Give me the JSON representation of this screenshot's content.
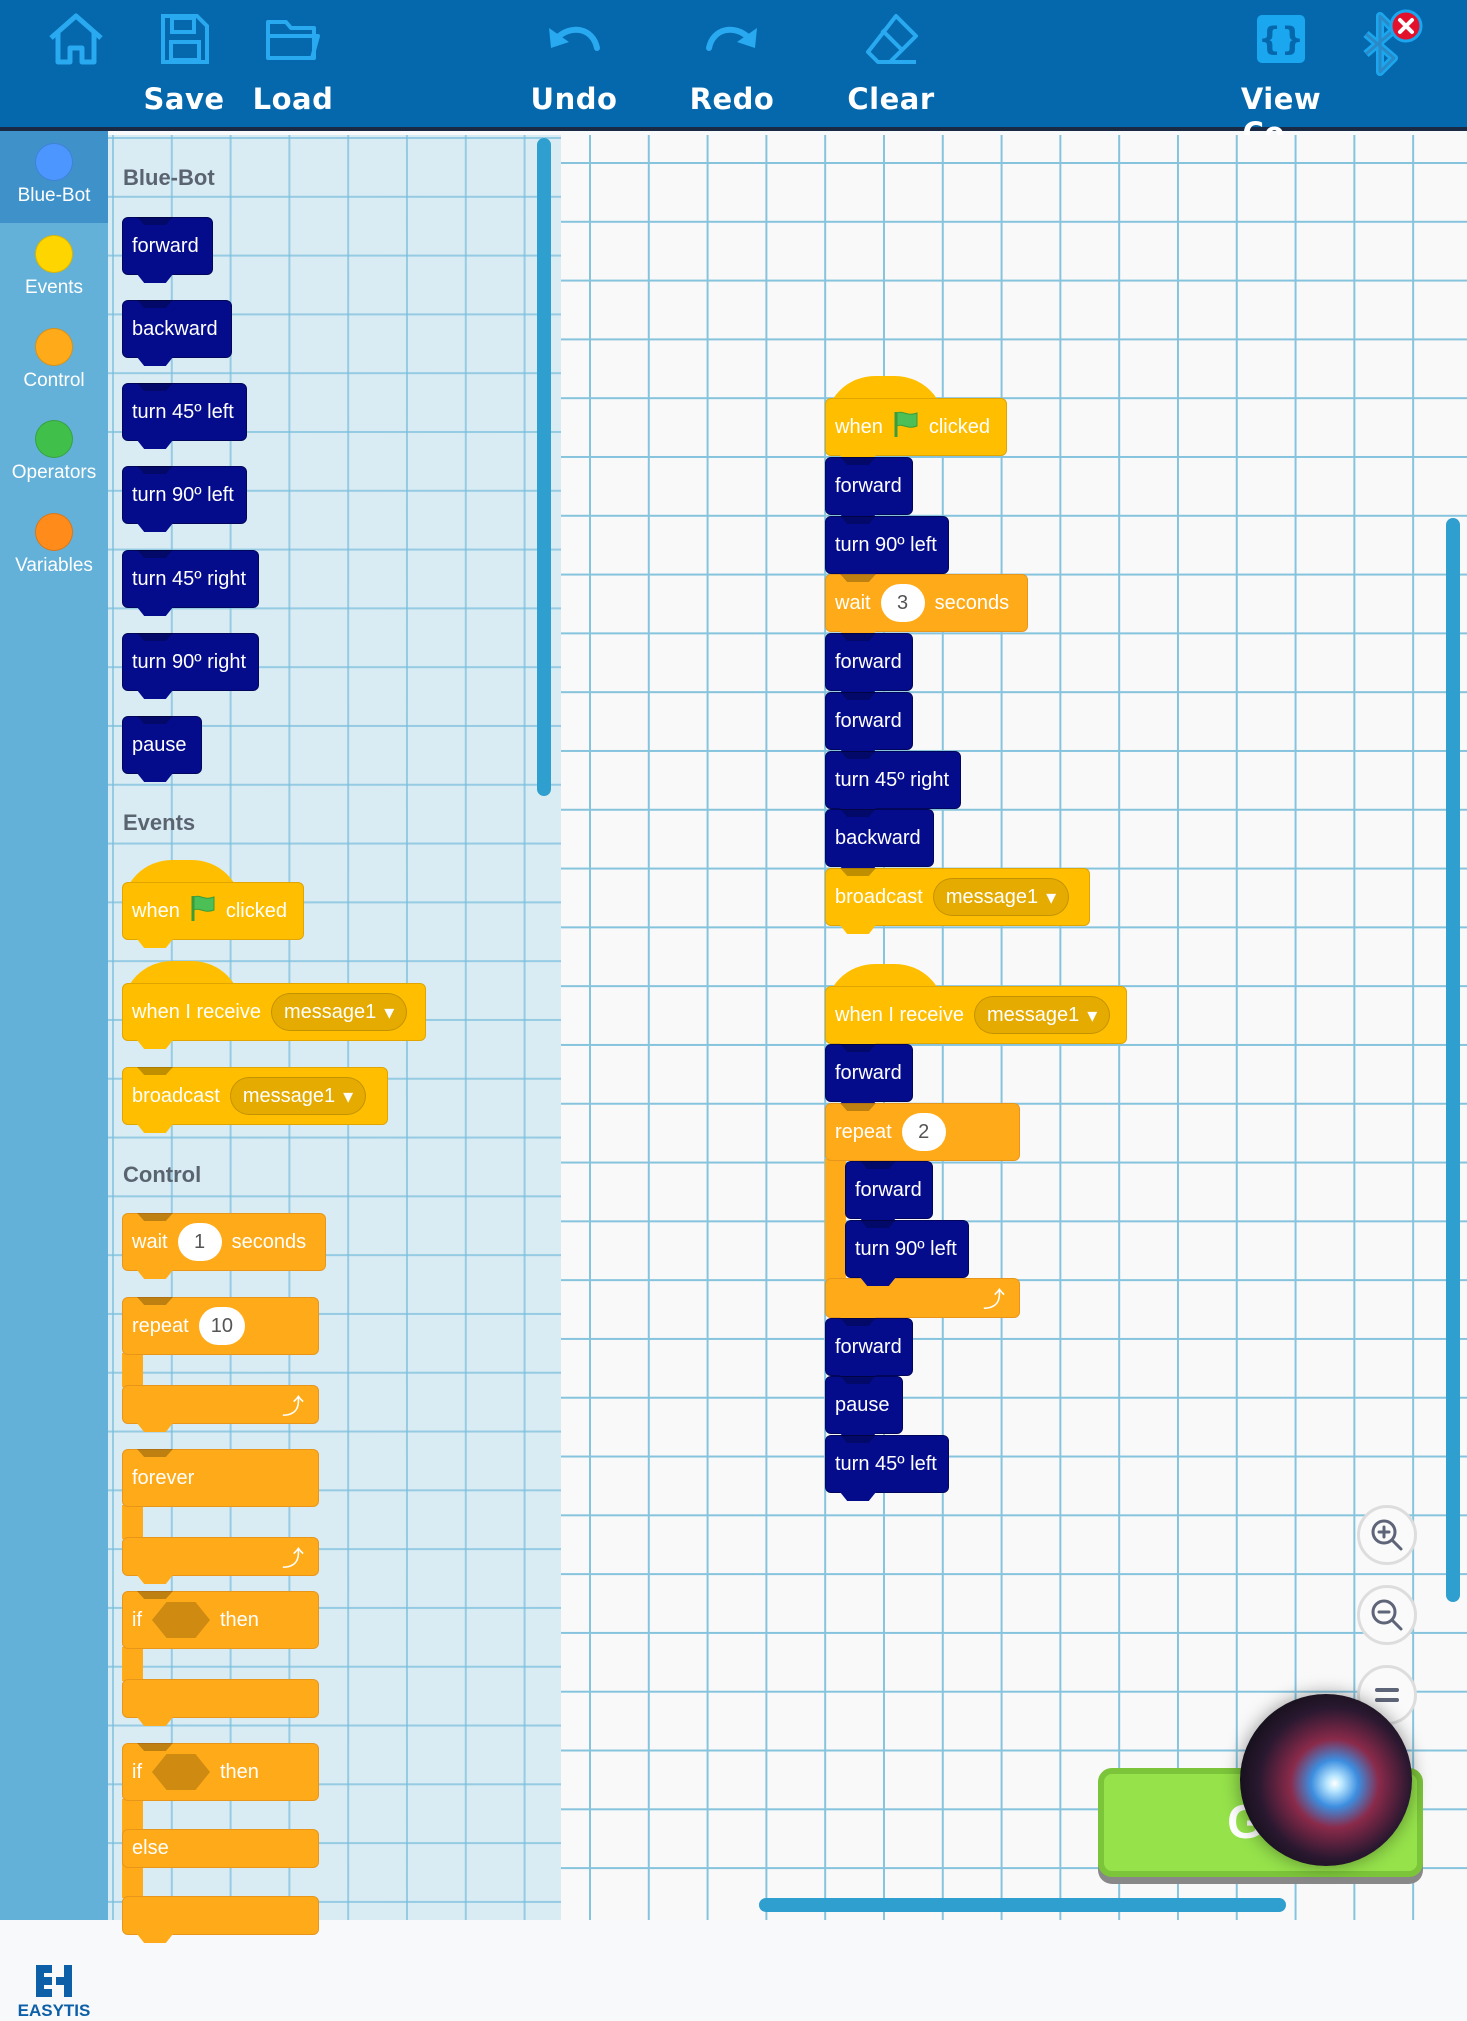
{
  "toolbar": {
    "home_icon": "home-icon",
    "items": [
      {
        "label": "Save",
        "icon": "save-icon"
      },
      {
        "label": "Load",
        "icon": "folder-icon"
      },
      {
        "label": "Undo",
        "icon": "undo-icon"
      },
      {
        "label": "Redo",
        "icon": "redo-icon"
      },
      {
        "label": "Clear",
        "icon": "eraser-icon"
      },
      {
        "label": "View Co...",
        "icon": "code-braces-icon"
      }
    ],
    "bluetooth_icon": "bluetooth-disconnected-icon",
    "icon_color": "#29a9f0",
    "bar_color": "#0568ad"
  },
  "sidebar": {
    "selected": "Blue-Bot",
    "categories": [
      {
        "label": "Blue-Bot",
        "color": "#4c97ff"
      },
      {
        "label": "Events",
        "color": "#ffd500"
      },
      {
        "label": "Control",
        "color": "#ffab19"
      },
      {
        "label": "Operators",
        "color": "#40bf4a"
      },
      {
        "label": "Variables",
        "color": "#ff8c1a"
      }
    ],
    "logo": "EASYTIS"
  },
  "palette": {
    "headings": [
      "Blue-Bot",
      "Events",
      "Control"
    ],
    "blocks": [
      {
        "type": "motion",
        "parts": [
          {
            "t": "text",
            "v": "forward"
          }
        ]
      },
      {
        "type": "motion",
        "parts": [
          {
            "t": "text",
            "v": "backward"
          }
        ]
      },
      {
        "type": "motion",
        "parts": [
          {
            "t": "text",
            "v": "turn 45º left"
          }
        ]
      },
      {
        "type": "motion",
        "parts": [
          {
            "t": "text",
            "v": "turn 90º left"
          }
        ]
      },
      {
        "type": "motion",
        "parts": [
          {
            "t": "text",
            "v": "turn 45º right"
          }
        ]
      },
      {
        "type": "motion",
        "parts": [
          {
            "t": "text",
            "v": "turn 90º right"
          }
        ]
      },
      {
        "type": "motion",
        "parts": [
          {
            "t": "text",
            "v": "pause"
          }
        ]
      },
      {
        "type": "event",
        "shape": "hat",
        "parts": [
          {
            "t": "text",
            "v": "when"
          },
          {
            "t": "flag",
            "v": "green-flag-icon"
          },
          {
            "t": "text",
            "v": "clicked"
          }
        ]
      },
      {
        "type": "event",
        "shape": "hat",
        "parts": [
          {
            "t": "text",
            "v": "when I receive"
          },
          {
            "t": "dropdown",
            "v": "message1"
          }
        ]
      },
      {
        "type": "event",
        "parts": [
          {
            "t": "text",
            "v": "broadcast"
          },
          {
            "t": "dropdown",
            "v": "message1"
          }
        ]
      },
      {
        "type": "control",
        "parts": [
          {
            "t": "text",
            "v": "wait"
          },
          {
            "t": "input",
            "v": "1"
          },
          {
            "t": "text",
            "v": "seconds"
          }
        ]
      },
      {
        "type": "control",
        "shape": "c",
        "parts": [
          {
            "t": "text",
            "v": "repeat"
          },
          {
            "t": "input",
            "v": "10"
          }
        ]
      },
      {
        "type": "control",
        "shape": "c",
        "parts": [
          {
            "t": "text",
            "v": "forever"
          }
        ]
      },
      {
        "type": "control",
        "shape": "c",
        "parts": [
          {
            "t": "text",
            "v": "if"
          },
          {
            "t": "hex",
            "v": ""
          },
          {
            "t": "text",
            "v": "then"
          }
        ]
      },
      {
        "type": "control",
        "shape": "ifelse",
        "parts": [
          {
            "t": "text",
            "v": "if"
          },
          {
            "t": "hex",
            "v": ""
          },
          {
            "t": "text",
            "v": "then"
          }
        ],
        "else_label": "else"
      }
    ]
  },
  "workspace": {
    "blocks": [
      {
        "type": "event",
        "shape": "hat",
        "parts": [
          {
            "t": "text",
            "v": "when"
          },
          {
            "t": "flag",
            "v": "green-flag-icon"
          },
          {
            "t": "text",
            "v": "clicked"
          }
        ]
      },
      {
        "type": "motion",
        "parts": [
          {
            "t": "text",
            "v": "forward"
          }
        ]
      },
      {
        "type": "motion",
        "parts": [
          {
            "t": "text",
            "v": "turn 90º left"
          }
        ]
      },
      {
        "type": "control",
        "parts": [
          {
            "t": "text",
            "v": "wait"
          },
          {
            "t": "input",
            "v": "3"
          },
          {
            "t": "text",
            "v": "seconds"
          }
        ]
      },
      {
        "type": "motion",
        "parts": [
          {
            "t": "text",
            "v": "forward"
          }
        ]
      },
      {
        "type": "motion",
        "parts": [
          {
            "t": "text",
            "v": "forward"
          }
        ]
      },
      {
        "type": "motion",
        "parts": [
          {
            "t": "text",
            "v": "turn 45º right"
          }
        ]
      },
      {
        "type": "motion",
        "parts": [
          {
            "t": "text",
            "v": "backward"
          }
        ]
      },
      {
        "type": "event",
        "parts": [
          {
            "t": "text",
            "v": "broadcast"
          },
          {
            "t": "dropdown",
            "v": "message1"
          }
        ]
      },
      {
        "type": "event",
        "shape": "hat",
        "parts": [
          {
            "t": "text",
            "v": "when I receive"
          },
          {
            "t": "dropdown",
            "v": "message1"
          }
        ]
      },
      {
        "type": "motion",
        "parts": [
          {
            "t": "text",
            "v": "forward"
          }
        ]
      },
      {
        "type": "control",
        "shape": "c",
        "parts": [
          {
            "t": "text",
            "v": "repeat"
          },
          {
            "t": "input",
            "v": "2"
          }
        ]
      },
      {
        "type": "motion",
        "parts": [
          {
            "t": "text",
            "v": "forward"
          }
        ]
      },
      {
        "type": "motion",
        "parts": [
          {
            "t": "text",
            "v": "turn 90º left"
          }
        ]
      },
      {
        "type": "motion",
        "parts": [
          {
            "t": "text",
            "v": "forward"
          }
        ]
      },
      {
        "type": "motion",
        "parts": [
          {
            "t": "text",
            "v": "pause"
          }
        ]
      },
      {
        "type": "motion",
        "parts": [
          {
            "t": "text",
            "v": "turn 45º left"
          }
        ]
      }
    ]
  },
  "zoom_controls": [
    {
      "icon": "zoom-in-icon"
    },
    {
      "icon": "zoom-out-icon"
    },
    {
      "icon": "reset-zoom-icon"
    }
  ],
  "go_button": {
    "label": "Go",
    "color": "#95e24b"
  },
  "siri_overlay": {
    "icon": "siri-orb-icon"
  }
}
